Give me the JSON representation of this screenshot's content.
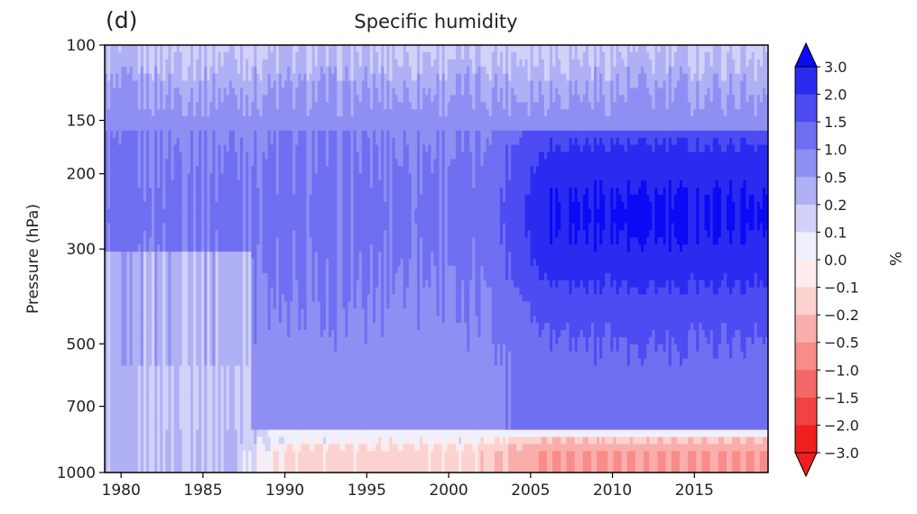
{
  "chart_data": {
    "type": "heatmap",
    "panel_label": "(d)",
    "title": "Specific humidity",
    "xlabel": "",
    "ylabel": "Pressure (hPa)",
    "x_ticks": [
      "1980",
      "1985",
      "1990",
      "1995",
      "2000",
      "2005",
      "2010",
      "2015"
    ],
    "x_tick_values": [
      1980,
      1985,
      1990,
      1995,
      2000,
      2005,
      2010,
      2015
    ],
    "xlim": [
      1979,
      2019.5
    ],
    "y_ticks": [
      "100",
      "150",
      "200",
      "300",
      "500",
      "700",
      "1000"
    ],
    "y_tick_values": [
      100,
      150,
      200,
      300,
      500,
      700,
      1000
    ],
    "ylim": [
      1000,
      100
    ],
    "y_scale": "log",
    "colorbar": {
      "unit": "%",
      "levels": [
        "3.0",
        "2.0",
        "1.5",
        "1.0",
        "0.5",
        "0.2",
        "0.1",
        "0.0",
        "−0.1",
        "−0.2",
        "−0.5",
        "−1.0",
        "−1.5",
        "−2.0",
        "−3.0"
      ],
      "colors": [
        "#0a0af5",
        "#2b2bf0",
        "#4c4cf2",
        "#6f6ff2",
        "#8f8ff3",
        "#b0b0f5",
        "#d2d2f8",
        "#f0f0fc",
        "#fdeceb",
        "#fcd2d0",
        "#f9aeac",
        "#f78c89",
        "#f46967",
        "#f14442",
        "#ee1f1d"
      ],
      "extend": "both"
    },
    "field_summary": [
      {
        "levels_hPa": "100-150",
        "period": "1979-2019",
        "approx_value": 0.1
      },
      {
        "levels_hPa": "150-500",
        "period": "1979-2003",
        "approx_value": 0.5
      },
      {
        "levels_hPa": "200-400",
        "period": "2003-2019",
        "approx_value": 1.5
      },
      {
        "levels_hPa": "500-750",
        "period": "2006-2019",
        "approx_value": 0.7
      },
      {
        "levels_hPa": "500-1000",
        "period": "1979-1988",
        "approx_value": 0.1
      },
      {
        "levels_hPa": "800-1000",
        "period": "1988-2019",
        "approx_value": -0.5
      },
      {
        "levels_hPa": "800-1000",
        "period": "2004-2019",
        "approx_value": -1.0
      }
    ]
  }
}
